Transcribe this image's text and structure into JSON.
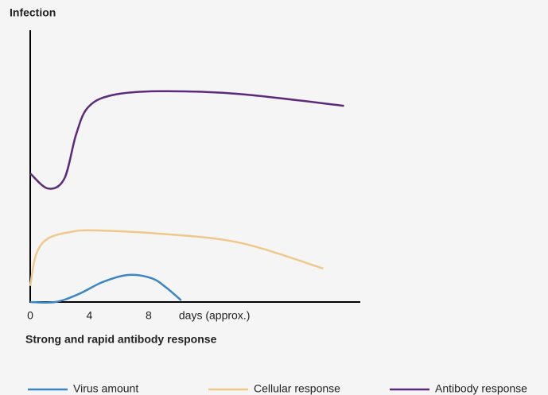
{
  "chart_data": {
    "type": "line",
    "title": "Infection",
    "subtitle": "Strong and rapid antibody response",
    "x_label": "days (approx.)",
    "xlim": [
      0,
      22.3
    ],
    "xticks": [
      0,
      4,
      8
    ],
    "ylim": [
      0,
      100
    ],
    "legend": "bottom",
    "series": [
      {
        "name": "Virus amount",
        "color": "#3b86c6",
        "x": [
          0,
          1.7,
          3.3,
          4.9,
          6.6,
          8.2,
          9.2,
          10.2
        ],
        "values": [
          0,
          0,
          3,
          7.4,
          10,
          8.8,
          5.3,
          0.6
        ]
      },
      {
        "name": "Cellular response",
        "color": "#f0c98a",
        "x": [
          0,
          0.4,
          1.2,
          2.8,
          4.4,
          8.7,
          14.1,
          19.8
        ],
        "values": [
          6,
          17.6,
          23.5,
          26,
          26.5,
          25.3,
          22,
          12.4
        ]
      },
      {
        "name": "Antibody response",
        "color": "#5b2a7a",
        "x": [
          0,
          1.2,
          2.3,
          3.1,
          3.9,
          5.5,
          8.7,
          14.1,
          21.2
        ],
        "values": [
          47.6,
          42,
          45.6,
          62,
          72,
          76.5,
          78,
          77,
          72.6
        ]
      }
    ]
  }
}
